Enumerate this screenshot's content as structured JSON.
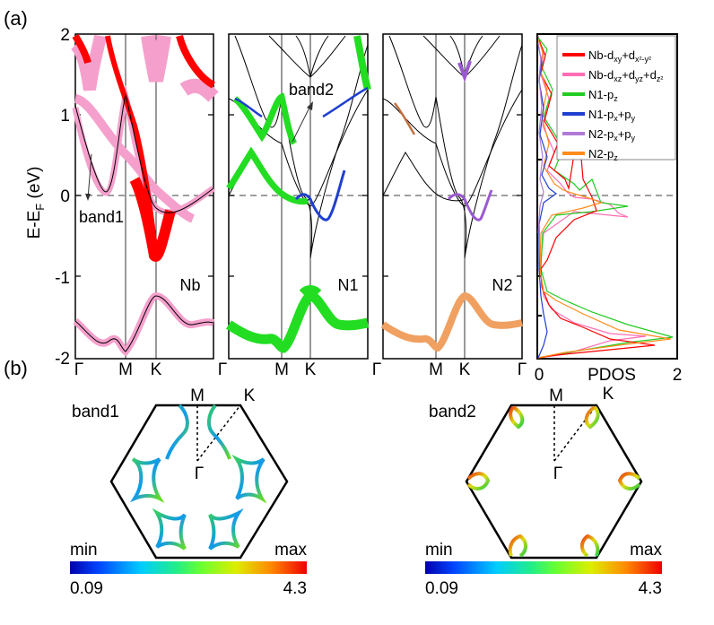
{
  "labels": {
    "panel_a": "(a)",
    "panel_b": "(b)",
    "ylabel_main": "E-E",
    "ylabel_sub": "F",
    "ylabel_unit": " (eV)",
    "pdos_xlabel": "PDOS"
  },
  "chart_data": [
    {
      "type": "line",
      "title": "Nb",
      "panel": "Nb",
      "xticks": [
        "Γ",
        "M",
        "K",
        "Γ"
      ],
      "ylim": [
        -2,
        2
      ],
      "yticks": [
        "-2",
        "-1",
        "0",
        "1",
        "2"
      ],
      "fermi_level": 0,
      "annotation": "band1",
      "fat_colors": [
        "#ff0000",
        "#f5a0cc"
      ]
    },
    {
      "type": "line",
      "title": "N1",
      "panel": "N1",
      "xticks": [
        "Γ",
        "M",
        "K",
        "Γ"
      ],
      "ylim": [
        -2,
        2
      ],
      "fermi_level": 0,
      "annotation": "band2",
      "fat_colors": [
        "#22dd22",
        "#1f3fd0"
      ]
    },
    {
      "type": "line",
      "title": "N2",
      "panel": "N2",
      "xticks": [
        "Γ",
        "M",
        "K",
        "Γ"
      ],
      "ylim": [
        -2,
        2
      ],
      "fermi_level": 0,
      "fat_colors": [
        "#9b59d0",
        "#f0a060"
      ]
    },
    {
      "type": "line",
      "title": "PDOS",
      "xlabel": "PDOS",
      "xlim": [
        0,
        2
      ],
      "xticks": [
        "0",
        "2"
      ],
      "ylim": [
        -2,
        2
      ],
      "legend_position": "top-right",
      "series": [
        {
          "name": "Nb-dxy+dx²-y²",
          "color": "#ff0000",
          "base": "Nb-d",
          "subs": [
            "xy",
            "x²-y²"
          ]
        },
        {
          "name": "Nb-dxz+dyz+dz²",
          "color": "#ff6eb4",
          "base": "Nb-d",
          "subs": [
            "xz",
            "yz",
            "z²"
          ]
        },
        {
          "name": "N1-pz",
          "color": "#22cc22",
          "base": "N1-p",
          "subs": [
            "z"
          ]
        },
        {
          "name": "N1-px+py",
          "color": "#1f3fd0",
          "base": "N1-p",
          "subs": [
            "x",
            "y"
          ]
        },
        {
          "name": "N2-px+py",
          "color": "#b07ad8",
          "base": "N2-p",
          "subs": [
            "x",
            "y"
          ]
        },
        {
          "name": "N2-pz",
          "color": "#ff8c1a",
          "base": "N2-p",
          "subs": [
            "z"
          ]
        }
      ]
    },
    {
      "type": "heatmap",
      "title": "band1",
      "panel": "band1",
      "colorbar": {
        "min_label": "min",
        "max_label": "max",
        "min": "0.09",
        "max": "4.3"
      },
      "points": [
        "M",
        "K",
        "Γ"
      ]
    },
    {
      "type": "heatmap",
      "title": "band2",
      "panel": "band2",
      "colorbar": {
        "min_label": "min",
        "max_label": "max",
        "min": "0.09",
        "max": "4.3"
      },
      "points": [
        "M",
        "K",
        "Γ"
      ]
    }
  ]
}
